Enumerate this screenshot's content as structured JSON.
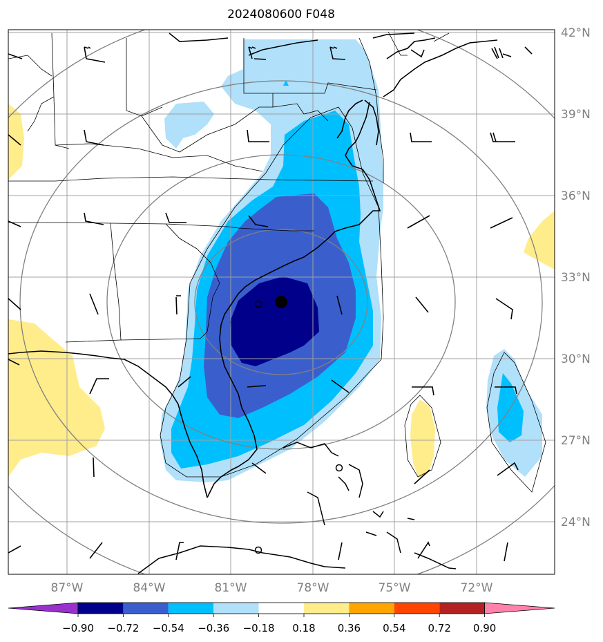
{
  "title": "2024080600 F048",
  "lat_labels": [
    "42°N",
    "39°N",
    "36°N",
    "33°N",
    "30°N",
    "27°N",
    "24°N"
  ],
  "lon_labels": [
    "87°W",
    "84°W",
    "81°W",
    "78°W",
    "75°W",
    "72°W"
  ],
  "colorbar": {
    "ticks": [
      "−0.90",
      "−0.72",
      "−0.54",
      "−0.36",
      "−0.18",
      "0.18",
      "0.36",
      "0.54",
      "0.72",
      "0.90"
    ],
    "colors": [
      "#9932cc",
      "#00008b",
      "#3a5fcd",
      "#00bfff",
      "#b0e0fa",
      "#ffffff",
      "#ffec8b",
      "#ffa500",
      "#ff4500",
      "#b22222",
      "#ff82ab"
    ]
  },
  "storm_center": {
    "lat": 32.1,
    "lon": -79.2
  },
  "markers": [
    {
      "type": "filled-circle",
      "lat": 32.1,
      "lon": -79.2
    },
    {
      "type": "open-circle",
      "lat": 32.0,
      "lon": -80.0
    },
    {
      "type": "open-circle",
      "lat": 26.3,
      "lon": -77.0
    },
    {
      "type": "open-circle",
      "lat": 23.0,
      "lon": -80.0
    },
    {
      "type": "triangle",
      "lat": 40.1,
      "lon": -79.0
    }
  ]
}
